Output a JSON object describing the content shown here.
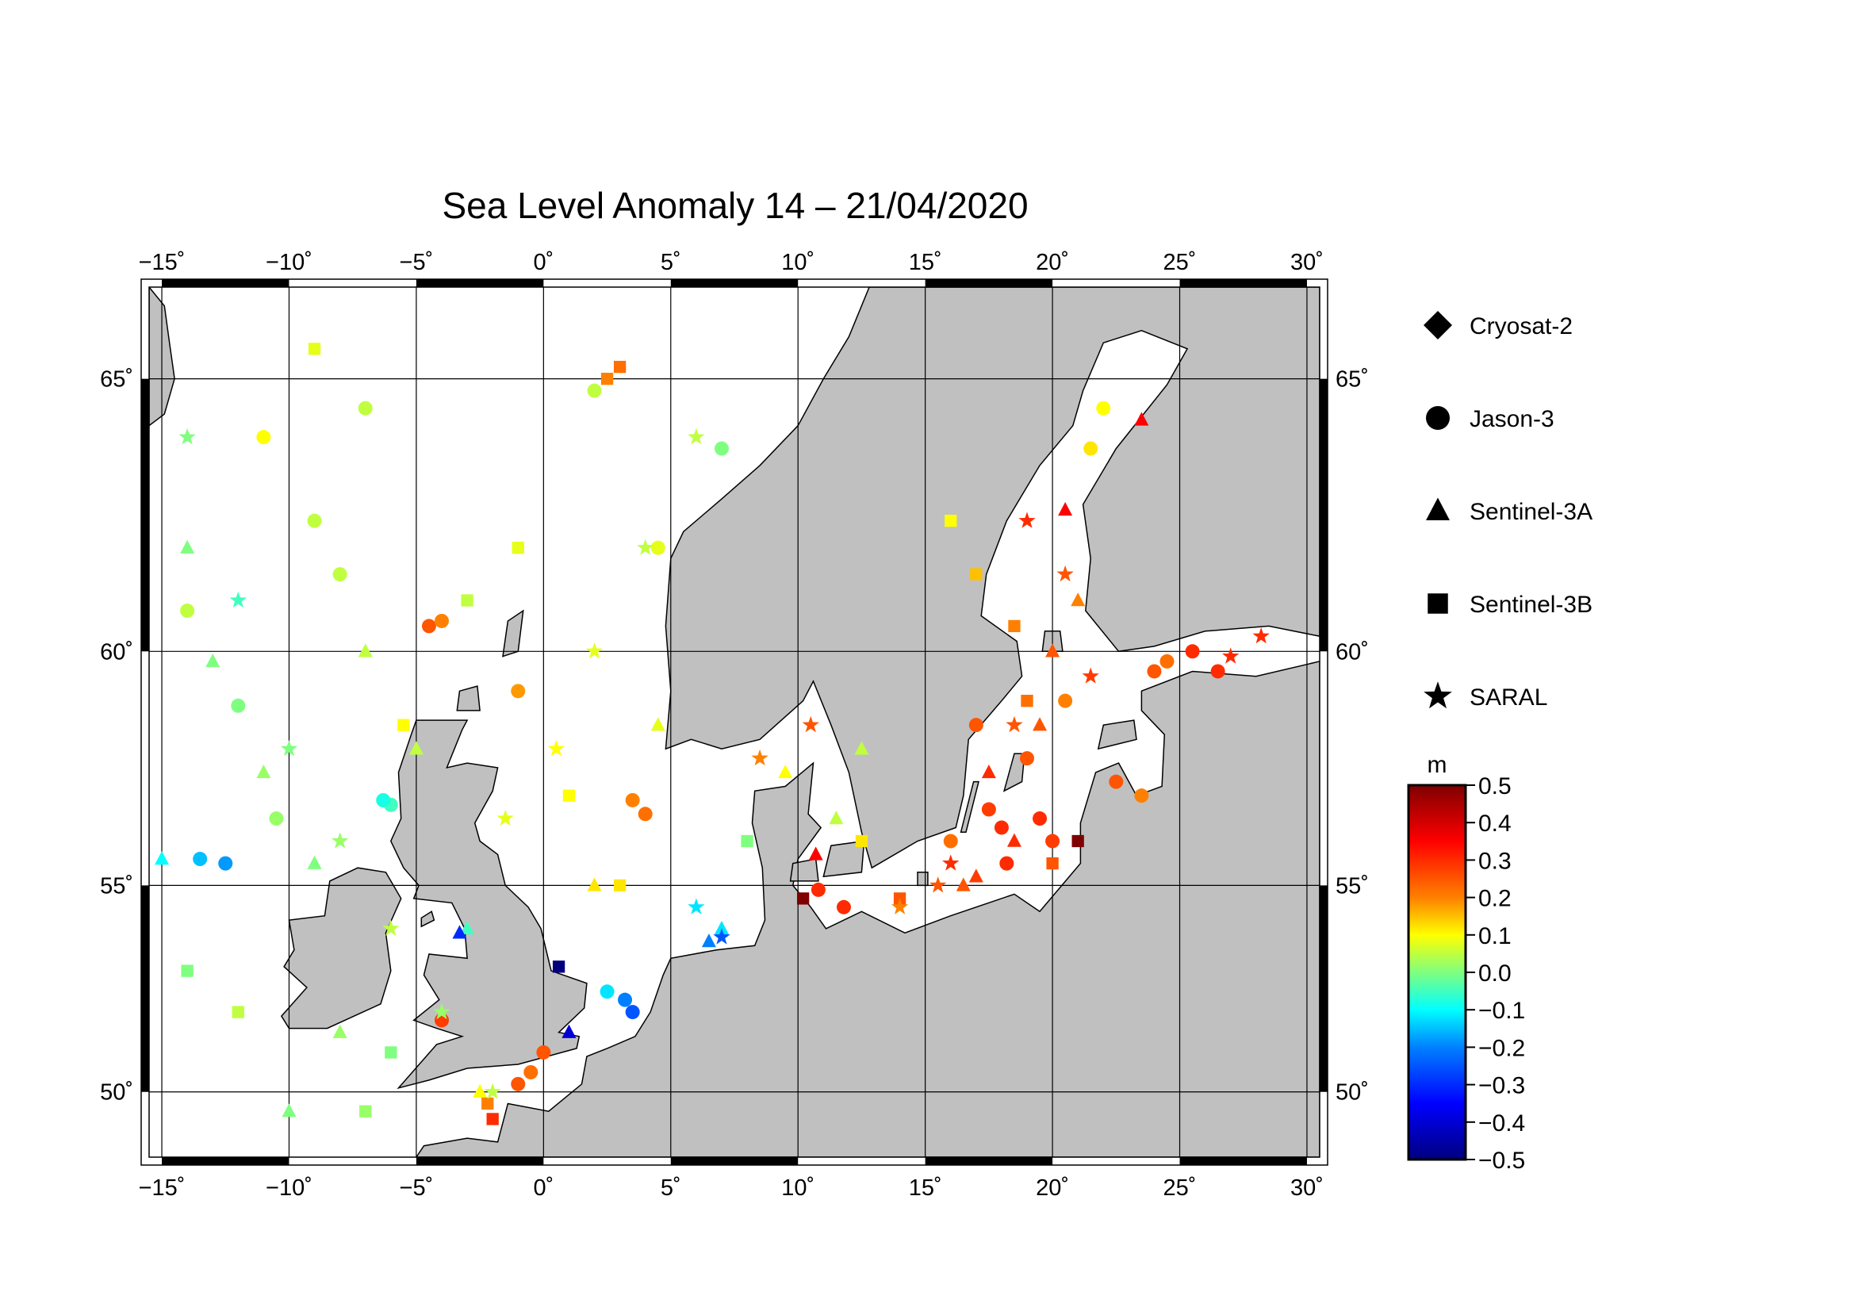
{
  "title": "Sea Level Anomaly 14 – 21/04/2020",
  "map": {
    "lon_range": [
      -15.5,
      30.5
    ],
    "lat_range": [
      48.3,
      66.5
    ],
    "lon_ticks": [
      -15,
      -10,
      -5,
      0,
      5,
      10,
      15,
      20,
      25,
      30
    ],
    "lat_ticks": [
      50,
      55,
      60,
      65
    ],
    "lon_labels": [
      "−15˚",
      "−10˚",
      "−5˚",
      "0˚",
      "5˚",
      "10˚",
      "15˚",
      "20˚",
      "25˚",
      "30˚"
    ],
    "lat_labels": [
      "50˚",
      "55˚",
      "60˚",
      "65˚"
    ],
    "land_color": "#c0c0c0",
    "sea_color": "#ffffff",
    "grid": true
  },
  "legend": {
    "items": [
      {
        "label": "Cryosat-2",
        "marker": "diamond"
      },
      {
        "label": "Jason-3",
        "marker": "circle"
      },
      {
        "label": "Sentinel-3A",
        "marker": "triangle"
      },
      {
        "label": "Sentinel-3B",
        "marker": "square"
      },
      {
        "label": "SARAL",
        "marker": "star"
      }
    ]
  },
  "colorbar": {
    "unit": "m",
    "min": -0.5,
    "max": 0.5,
    "tick_labels": [
      "0.5",
      "0.4",
      "0.3",
      "0.2",
      "0.1",
      "0.0",
      "−0.1",
      "−0.2",
      "−0.3",
      "−0.4",
      "−0.5"
    ],
    "stops": [
      {
        "v": -0.5,
        "color": "#00007f"
      },
      {
        "v": -0.35,
        "color": "#0000ff"
      },
      {
        "v": -0.2,
        "color": "#0080ff"
      },
      {
        "v": -0.1,
        "color": "#00ffff"
      },
      {
        "v": 0.0,
        "color": "#7fff7f"
      },
      {
        "v": 0.1,
        "color": "#ffff00"
      },
      {
        "v": 0.2,
        "color": "#ff8000"
      },
      {
        "v": 0.35,
        "color": "#ff0000"
      },
      {
        "v": 0.5,
        "color": "#7f0000"
      }
    ]
  },
  "chart_data": {
    "type": "scatter",
    "title": "Sea Level Anomaly 14 – 21/04/2020",
    "xlabel": "",
    "ylabel": "",
    "xlim": [
      -15.5,
      30.5
    ],
    "ylim": [
      48.3,
      66.5
    ],
    "color_variable": "sea level anomaly (m)",
    "series": [
      {
        "name": "Jason-3",
        "marker": "circle",
        "points": [
          [
            -14,
            60.8,
            0.05
          ],
          [
            -12,
            58.9,
            0.0
          ],
          [
            -10.5,
            56.5,
            0.02
          ],
          [
            -13.5,
            55.6,
            -0.15
          ],
          [
            -12.5,
            55.5,
            -0.18
          ],
          [
            -9,
            62.5,
            0.05
          ],
          [
            -7,
            64.5,
            0.05
          ],
          [
            -4.5,
            60.5,
            0.25
          ],
          [
            -4.0,
            60.6,
            0.2
          ],
          [
            -1.0,
            59.2,
            0.18
          ],
          [
            3.5,
            56.9,
            0.2
          ],
          [
            4.0,
            56.6,
            0.22
          ],
          [
            3.2,
            52.3,
            -0.2
          ],
          [
            3.5,
            52.0,
            -0.25
          ],
          [
            2.5,
            52.5,
            -0.12
          ],
          [
            -1,
            50.2,
            0.25
          ],
          [
            -0.5,
            50.5,
            0.22
          ],
          [
            0.0,
            51.0,
            0.25
          ],
          [
            10.8,
            54.9,
            0.3
          ],
          [
            11.8,
            54.5,
            0.3
          ],
          [
            16.0,
            56.0,
            0.22
          ],
          [
            18.0,
            56.3,
            0.3
          ],
          [
            19.0,
            57.8,
            0.25
          ],
          [
            20.5,
            59.0,
            0.2
          ],
          [
            22.5,
            57.3,
            0.25
          ],
          [
            23.5,
            57.0,
            0.2
          ],
          [
            24.5,
            59.8,
            0.22
          ],
          [
            26.5,
            59.6,
            0.3
          ],
          [
            18.2,
            55.5,
            0.3
          ],
          [
            17.0,
            58.5,
            0.25
          ],
          [
            -6,
            56.8,
            -0.05
          ],
          [
            -6.3,
            56.9,
            -0.08
          ],
          [
            -4.0,
            51.8,
            0.28
          ],
          [
            7.0,
            63.8,
            0.0
          ],
          [
            2.0,
            64.8,
            0.05
          ],
          [
            4.5,
            62.0,
            0.08
          ],
          [
            -11,
            64.0,
            0.1
          ],
          [
            -8,
            61.5,
            0.05
          ],
          [
            21.5,
            63.8,
            0.12
          ],
          [
            22.0,
            64.5,
            0.1
          ],
          [
            24.0,
            59.6,
            0.25
          ],
          [
            25.5,
            60.0,
            0.3
          ],
          [
            20.0,
            56.0,
            0.28
          ],
          [
            19.5,
            56.5,
            0.3
          ],
          [
            17.5,
            56.7,
            0.28
          ]
        ]
      },
      {
        "name": "Sentinel-3A",
        "marker": "triangle",
        "points": [
          [
            -14,
            62.0,
            0.0
          ],
          [
            -13,
            59.8,
            0.0
          ],
          [
            -11,
            57.5,
            0.02
          ],
          [
            -9,
            55.5,
            0.0
          ],
          [
            -15,
            55.6,
            -0.1
          ],
          [
            -7,
            60.0,
            0.05
          ],
          [
            -5,
            58.0,
            0.05
          ],
          [
            -3,
            54.0,
            -0.05
          ],
          [
            -3.3,
            53.9,
            -0.3
          ],
          [
            1.0,
            51.5,
            -0.4
          ],
          [
            6.5,
            53.7,
            -0.2
          ],
          [
            7.0,
            54.0,
            -0.12
          ],
          [
            10.7,
            55.7,
            0.35
          ],
          [
            17.5,
            57.5,
            0.3
          ],
          [
            18.5,
            56.0,
            0.3
          ],
          [
            19.5,
            58.5,
            0.25
          ],
          [
            20.5,
            62.7,
            0.35
          ],
          [
            23.5,
            64.3,
            0.35
          ],
          [
            16.5,
            55.0,
            0.25
          ],
          [
            17.0,
            55.2,
            0.28
          ],
          [
            9.5,
            57.5,
            0.1
          ],
          [
            11.5,
            56.5,
            0.05
          ],
          [
            12.5,
            58.0,
            0.05
          ],
          [
            2.0,
            55.0,
            0.12
          ],
          [
            4.5,
            58.5,
            0.08
          ],
          [
            -8,
            51.5,
            0.02
          ],
          [
            -10,
            49.5,
            0.0
          ],
          [
            -2.5,
            50.0,
            0.1
          ],
          [
            20.0,
            60.0,
            0.25
          ],
          [
            21.0,
            61.0,
            0.2
          ]
        ]
      },
      {
        "name": "Sentinel-3B",
        "marker": "square",
        "points": [
          [
            -5.5,
            58.5,
            0.1
          ],
          [
            -3,
            61.0,
            0.05
          ],
          [
            -1,
            62.0,
            0.08
          ],
          [
            1,
            57.0,
            0.1
          ],
          [
            3,
            55.0,
            0.12
          ],
          [
            0.6,
            53.1,
            -0.5
          ],
          [
            10.2,
            54.7,
            0.5
          ],
          [
            21.0,
            56.0,
            0.5
          ],
          [
            -2.2,
            49.7,
            0.2
          ],
          [
            -2.0,
            49.3,
            0.3
          ],
          [
            19.0,
            59.0,
            0.22
          ],
          [
            18.5,
            60.5,
            0.2
          ],
          [
            17.0,
            61.5,
            0.15
          ],
          [
            16.0,
            62.5,
            0.1
          ],
          [
            20.0,
            55.5,
            0.25
          ],
          [
            -7.0,
            49.5,
            0.02
          ],
          [
            -6.0,
            51.0,
            0.0
          ],
          [
            -12,
            52.0,
            0.05
          ],
          [
            -14,
            53.0,
            0.0
          ],
          [
            8.0,
            56.0,
            0.0
          ],
          [
            12.5,
            56.0,
            0.12
          ],
          [
            14.0,
            54.7,
            0.25
          ],
          [
            2.5,
            65.0,
            0.2
          ],
          [
            3.0,
            65.2,
            0.22
          ],
          [
            -9.0,
            65.5,
            0.08
          ]
        ]
      },
      {
        "name": "SARAL",
        "marker": "star",
        "points": [
          [
            -14,
            64.0,
            0.0
          ],
          [
            -12,
            61.0,
            -0.05
          ],
          [
            -10,
            58.0,
            0.0
          ],
          [
            -8,
            56.0,
            0.02
          ],
          [
            -6,
            54.0,
            0.05
          ],
          [
            -4,
            52.0,
            0.02
          ],
          [
            -2,
            50.0,
            0.05
          ],
          [
            6.0,
            54.5,
            -0.12
          ],
          [
            7.0,
            53.8,
            -0.25
          ],
          [
            8.5,
            57.8,
            0.2
          ],
          [
            10.5,
            58.5,
            0.25
          ],
          [
            14.0,
            54.5,
            0.2
          ],
          [
            15.5,
            55.0,
            0.25
          ],
          [
            16.0,
            55.5,
            0.3
          ],
          [
            18.5,
            58.5,
            0.25
          ],
          [
            19.0,
            62.5,
            0.3
          ],
          [
            20.5,
            61.5,
            0.25
          ],
          [
            21.5,
            59.5,
            0.28
          ],
          [
            28.2,
            60.3,
            0.3
          ],
          [
            27.0,
            59.9,
            0.3
          ],
          [
            -1.5,
            56.5,
            0.08
          ],
          [
            0.5,
            58.0,
            0.1
          ],
          [
            2.0,
            60.0,
            0.08
          ],
          [
            4.0,
            62.0,
            0.05
          ],
          [
            6.0,
            64.0,
            0.05
          ]
        ]
      }
    ]
  }
}
